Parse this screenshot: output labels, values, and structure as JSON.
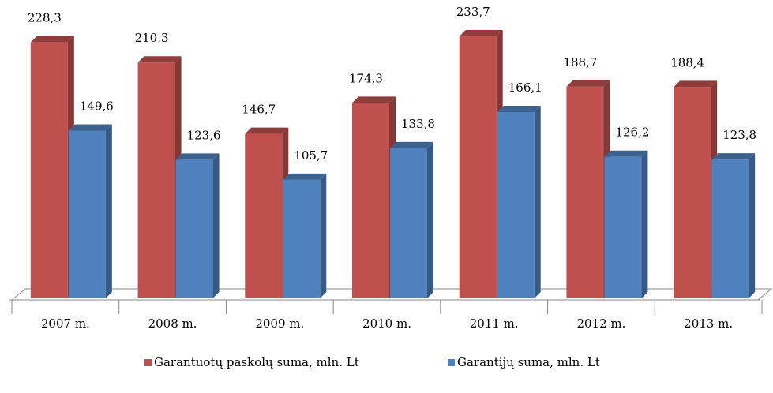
{
  "chart_data": {
    "type": "bar3d",
    "categories": [
      "2007 m.",
      "2008 m.",
      "2009 m.",
      "2010 m.",
      "2011 m.",
      "2012 m.",
      "2013 m."
    ],
    "series": [
      {
        "name": "Garantuotų paskolų suma, mln. Lt",
        "color": "#c0504d",
        "values": [
          228.3,
          210.3,
          146.7,
          174.3,
          233.7,
          188.7,
          188.4
        ],
        "value_labels": [
          "228,3",
          "210,3",
          "146,7",
          "174,3",
          "233,7",
          "188,7",
          "188,4"
        ]
      },
      {
        "name": "Garantijų suma, mln. Lt",
        "color": "#4f81bd",
        "values": [
          149.6,
          123.6,
          105.7,
          133.8,
          166.1,
          126.2,
          123.8
        ],
        "value_labels": [
          "149,6",
          "123,6",
          "105,7",
          "133,8",
          "166,1",
          "126,2",
          "123,8"
        ]
      }
    ],
    "ylim": [
      0,
      240
    ],
    "legend": "bottom"
  }
}
